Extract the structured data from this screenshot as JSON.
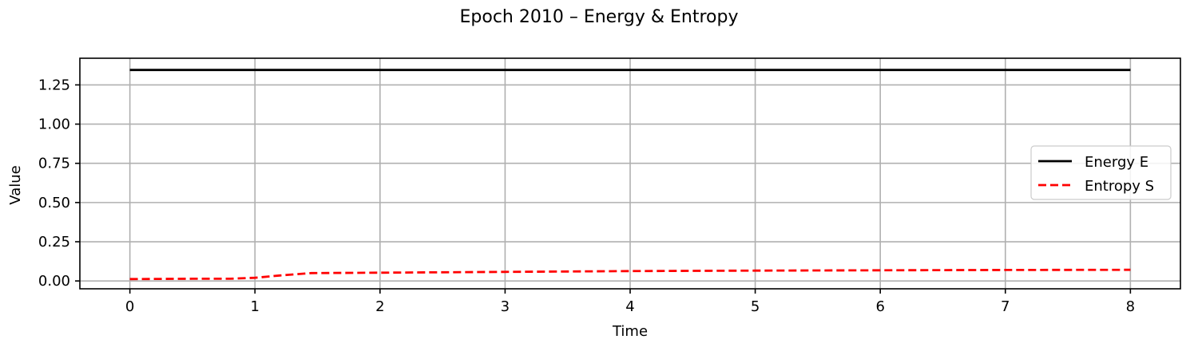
{
  "chart_data": {
    "type": "line",
    "title": "Epoch 2010 – Energy & Entropy",
    "xlabel": "Time",
    "ylabel": "Value",
    "xlim": [
      -0.4,
      8.4
    ],
    "ylim": [
      -0.05,
      1.42
    ],
    "xticks": [
      "0",
      "1",
      "2",
      "3",
      "4",
      "5",
      "6",
      "7",
      "8"
    ],
    "xtick_values": [
      0,
      1,
      2,
      3,
      4,
      5,
      6,
      7,
      8
    ],
    "yticks": [
      "0.00",
      "0.25",
      "0.50",
      "0.75",
      "1.00",
      "1.25"
    ],
    "ytick_values": [
      0,
      0.25,
      0.5,
      0.75,
      1.0,
      1.25
    ],
    "grid": true,
    "legend_position": "center-right",
    "series": [
      {
        "name": "Energy E",
        "color": "#000000",
        "style": "solid",
        "x": [
          0,
          1,
          2,
          3,
          4,
          5,
          6,
          7,
          8
        ],
        "y": [
          1.345,
          1.345,
          1.345,
          1.345,
          1.345,
          1.345,
          1.345,
          1.345,
          1.345
        ]
      },
      {
        "name": "Entropy S",
        "color": "#ff0000",
        "style": "dashed",
        "x": [
          0,
          0.5,
          0.8,
          1.0,
          1.2,
          1.45,
          2,
          3,
          4,
          5,
          6,
          7,
          8
        ],
        "y": [
          0.012,
          0.014,
          0.014,
          0.02,
          0.035,
          0.05,
          0.053,
          0.058,
          0.063,
          0.066,
          0.068,
          0.07,
          0.071
        ]
      }
    ]
  }
}
